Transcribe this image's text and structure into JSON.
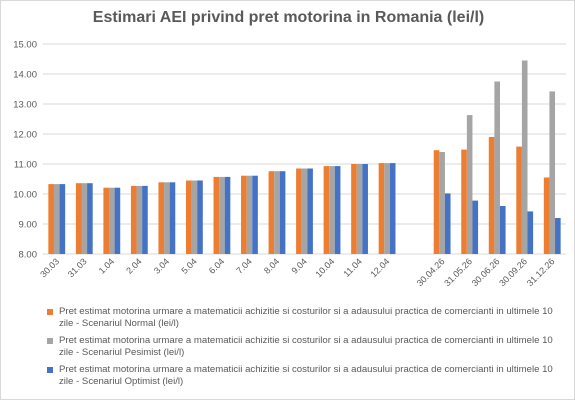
{
  "colors": {
    "normal": "#ed7d31",
    "pesimist": "#a5a5a5",
    "optimist": "#4472c4",
    "grid": "#d9d9d9",
    "text": "#595959"
  },
  "chart_data": {
    "type": "bar",
    "title": "Estimari AEI privind pret motorina in Romania (lei/l)",
    "xlabel": "",
    "ylabel": "",
    "ylim": [
      8.0,
      15.0
    ],
    "yticks": [
      "8.00",
      "9.00",
      "10.00",
      "11.00",
      "12.00",
      "13.00",
      "14.00",
      "15.00"
    ],
    "categories": [
      "30.03",
      "31.03",
      "1.04",
      "2.04",
      "3.04",
      "5.04",
      "6.04",
      "7.04",
      "8.04",
      "9.04",
      "10.04",
      "11.04",
      "12.04",
      "",
      "30.04.26",
      "31.05.26",
      "30.06.26",
      "30.09.26",
      "31.12.26"
    ],
    "grid": true,
    "legend_position": "bottom",
    "series": [
      {
        "name": "Pret estimat motorina urmare a matematicii achizitie si costurilor si a adausului practica de comercianti in ultimele 10 zile - Scenariul Normal (lei/l)",
        "color_key": "normal",
        "values": [
          10.33,
          10.36,
          10.21,
          10.27,
          10.39,
          10.45,
          10.57,
          10.61,
          10.76,
          10.85,
          10.93,
          11.0,
          11.03,
          null,
          11.46,
          11.48,
          11.9,
          11.58,
          10.55
        ]
      },
      {
        "name": "Pret estimat motorina urmare a matematicii achizitie si costurilor si a adausului practica de comercianti in ultimele 10 zile - Scenariul Pesimist (lei/l)",
        "color_key": "pesimist",
        "values": [
          10.33,
          10.36,
          10.21,
          10.27,
          10.39,
          10.45,
          10.57,
          10.61,
          10.76,
          10.85,
          10.93,
          11.0,
          11.03,
          null,
          11.4,
          12.63,
          13.75,
          14.45,
          13.42
        ]
      },
      {
        "name": "Pret estimat motorina urmare a matematicii achizitie si costurilor si a adausului practica de comercianti in ultimele 10 zile - Scenariul Optimist (lei/l)",
        "color_key": "optimist",
        "values": [
          10.33,
          10.36,
          10.21,
          10.27,
          10.39,
          10.45,
          10.57,
          10.61,
          10.76,
          10.85,
          10.93,
          11.0,
          11.03,
          null,
          10.02,
          9.78,
          9.6,
          9.42,
          9.2
        ]
      }
    ]
  }
}
